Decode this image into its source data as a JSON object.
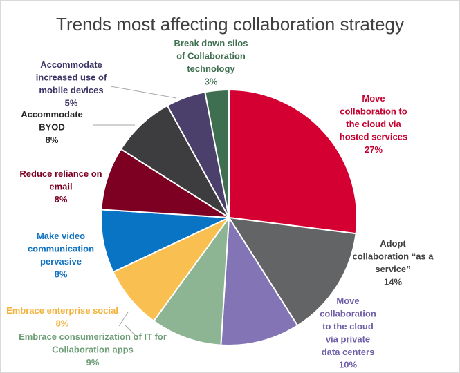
{
  "chart_data": {
    "type": "pie",
    "title": "Trends most affecting collaboration strategy",
    "slices": [
      {
        "label": [
          "Move",
          "collaboration to",
          "the cloud via",
          "hosted services"
        ],
        "pct_label": "27%",
        "value": 27,
        "color": "#d50032",
        "text_color": "#c5002e"
      },
      {
        "label": [
          "Adopt",
          "collaboration “as a",
          "service”"
        ],
        "pct_label": "14%",
        "value": 14,
        "color": "#636466",
        "text_color": "#404040"
      },
      {
        "label": [
          "Move",
          "collaboration",
          "to the cloud",
          "via private",
          "data centers"
        ],
        "pct_label": "10%",
        "value": 10,
        "color": "#8274b5",
        "text_color": "#6f5fa8"
      },
      {
        "label": [
          "Embrace consumerization of IT for",
          "Collaboration apps"
        ],
        "pct_label": "9%",
        "value": 9,
        "color": "#8db594",
        "text_color": "#6e9e77"
      },
      {
        "label": [
          "Embrace enterprise social"
        ],
        "pct_label": "8%",
        "value": 8,
        "color": "#f9bf50",
        "text_color": "#f2b23c"
      },
      {
        "label": [
          "Make video",
          "communication",
          "pervasive"
        ],
        "pct_label": "8%",
        "value": 8,
        "color": "#0a74c4",
        "text_color": "#1172c0"
      },
      {
        "label": [
          "Reduce reliance on",
          "email"
        ],
        "pct_label": "8%",
        "value": 8,
        "color": "#7d0022",
        "text_color": "#7d0022"
      },
      {
        "label": [
          "Accommodate",
          "BYOD"
        ],
        "pct_label": "8%",
        "value": 8,
        "color": "#3d3d40",
        "text_color": "#262626"
      },
      {
        "label": [
          "Accommodate",
          "increased use of",
          "mobile devices"
        ],
        "pct_label": "5%",
        "value": 5,
        "color": "#4b3f6b",
        "text_color": "#3d3466"
      },
      {
        "label": [
          "Break down silos",
          "of Collaboration",
          "technology"
        ],
        "pct_label": "3%",
        "value": 3,
        "color": "#3e6f50",
        "text_color": "#3e6f50"
      }
    ]
  }
}
